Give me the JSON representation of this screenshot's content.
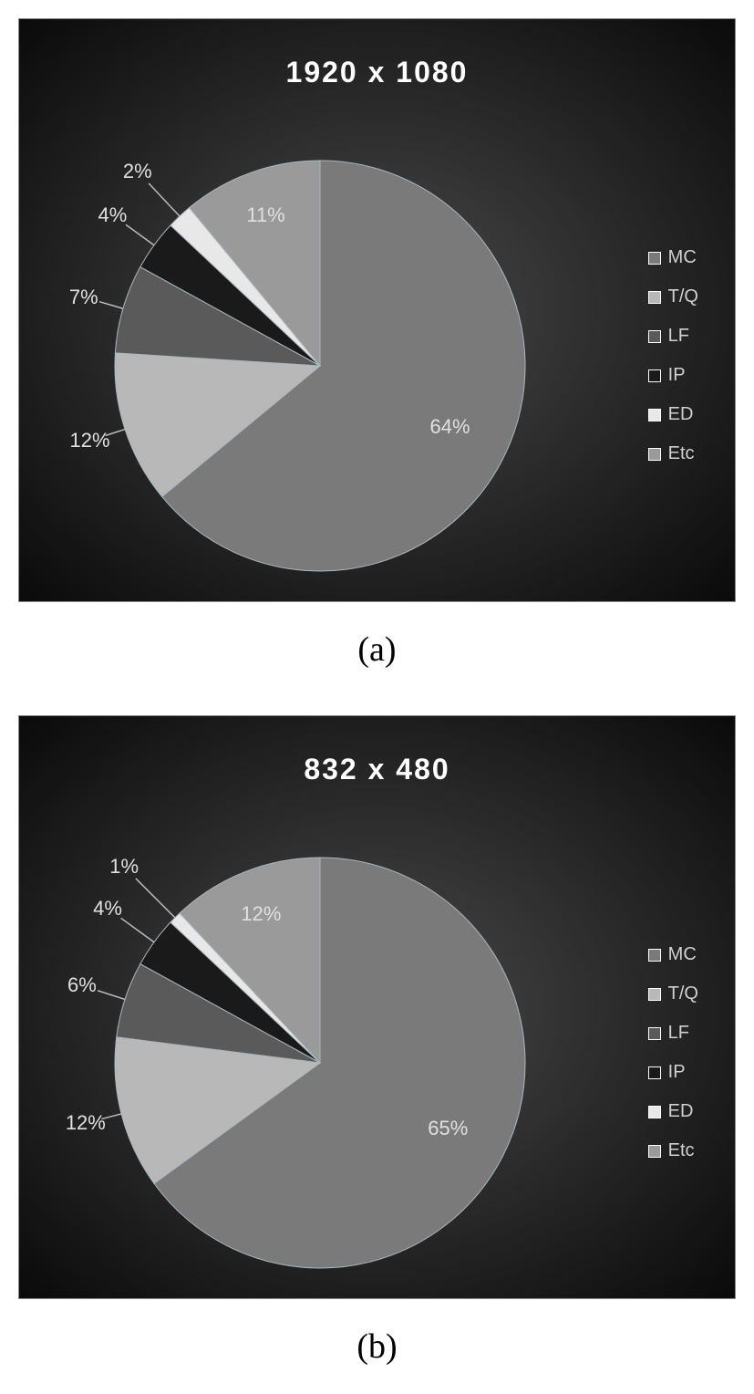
{
  "charts": [
    {
      "id": "chart-a",
      "title": "1920 x 1080",
      "caption": "(a)",
      "type": "pie",
      "background": "radial-gradient(#4a4a4a, #0a0a0a)",
      "title_color": "#ffffff",
      "title_fontsize": 32,
      "label_color": "#e0e0e0",
      "label_fontsize": 22,
      "pie_stroke": "#a8b8c0",
      "slices": [
        {
          "name": "MC",
          "value": 64,
          "label": "64%",
          "color": "#7a7a7a",
          "label_offset": 0.7
        },
        {
          "name": "T/Q",
          "value": 12,
          "label": "12%",
          "color": "#b8b8b8",
          "label_offset": 1.18
        },
        {
          "name": "LF",
          "value": 7,
          "label": "7%",
          "color": "#5a5a5a",
          "label_offset": 1.2
        },
        {
          "name": "IP",
          "value": 4,
          "label": "4%",
          "color": "#1a1a1a",
          "label_offset": 1.25
        },
        {
          "name": "ED",
          "value": 2,
          "label": "2%",
          "color": "#e8e8e8",
          "label_offset": 1.3
        },
        {
          "name": "Etc",
          "value": 11,
          "label": "11%",
          "color": "#9a9a9a",
          "label_offset": 0.78
        }
      ],
      "legend": [
        {
          "label": "MC",
          "color": "#7a7a7a"
        },
        {
          "label": "T/Q",
          "color": "#b8b8b8"
        },
        {
          "label": "LF",
          "color": "#5a5a5a"
        },
        {
          "label": "IP",
          "color": "#1a1a1a"
        },
        {
          "label": "ED",
          "color": "#e8e8e8"
        },
        {
          "label": "Etc",
          "color": "#9a9a9a"
        }
      ]
    },
    {
      "id": "chart-b",
      "title": "832 x 480",
      "caption": "(b)",
      "type": "pie",
      "background": "radial-gradient(#4a4a4a, #0a0a0a)",
      "title_color": "#ffffff",
      "title_fontsize": 32,
      "label_color": "#e0e0e0",
      "label_fontsize": 22,
      "pie_stroke": "#a8b8c0",
      "slices": [
        {
          "name": "MC",
          "value": 65,
          "label": "65%",
          "color": "#7a7a7a",
          "label_offset": 0.7
        },
        {
          "name": "T/Q",
          "value": 12,
          "label": "12%",
          "color": "#b8b8b8",
          "label_offset": 1.18
        },
        {
          "name": "LF",
          "value": 6,
          "label": "6%",
          "color": "#5a5a5a",
          "label_offset": 1.22
        },
        {
          "name": "IP",
          "value": 4,
          "label": "4%",
          "color": "#1a1a1a",
          "label_offset": 1.28
        },
        {
          "name": "ED",
          "value": 1,
          "label": "1%",
          "color": "#e8e8e8",
          "label_offset": 1.35
        },
        {
          "name": "Etc",
          "value": 12,
          "label": "12%",
          "color": "#9a9a9a",
          "label_offset": 0.78
        }
      ],
      "legend": [
        {
          "label": "MC",
          "color": "#7a7a7a"
        },
        {
          "label": "T/Q",
          "color": "#b8b8b8"
        },
        {
          "label": "LF",
          "color": "#5a5a5a"
        },
        {
          "label": "IP",
          "color": "#1a1a1a"
        },
        {
          "label": "ED",
          "color": "#e8e8e8"
        },
        {
          "label": "Etc",
          "color": "#9a9a9a"
        }
      ]
    }
  ]
}
